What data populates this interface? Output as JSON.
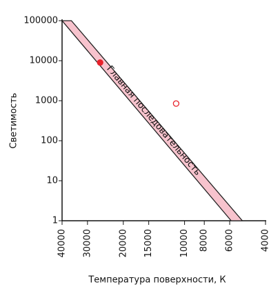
{
  "chart_data": {
    "type": "scatter",
    "xlabel": "Температура поверхности, К",
    "ylabel": "Светимость",
    "annotation": "Главная последовательность",
    "xlim": [
      40000,
      4000
    ],
    "xticks": [
      40000,
      30000,
      20000,
      15000,
      10000,
      8000,
      6000,
      4000
    ],
    "xscale": "log",
    "ylim": [
      1,
      100000
    ],
    "yticks": [
      1,
      10,
      100,
      1000,
      10000,
      100000
    ],
    "yscale": "log",
    "band": {
      "x": [
        40000,
        36000,
        5200,
        5900
      ],
      "y": [
        100000,
        100000,
        1,
        1
      ],
      "color": "#f7c3cd",
      "edge": "#222222"
    },
    "series": [
      {
        "x": [
          26000
        ],
        "values": [
          9000
        ],
        "color": "#e8222b",
        "filled": true
      },
      {
        "x": [
          11000
        ],
        "values": [
          850
        ],
        "color": "#e8222b",
        "filled": false
      }
    ]
  }
}
